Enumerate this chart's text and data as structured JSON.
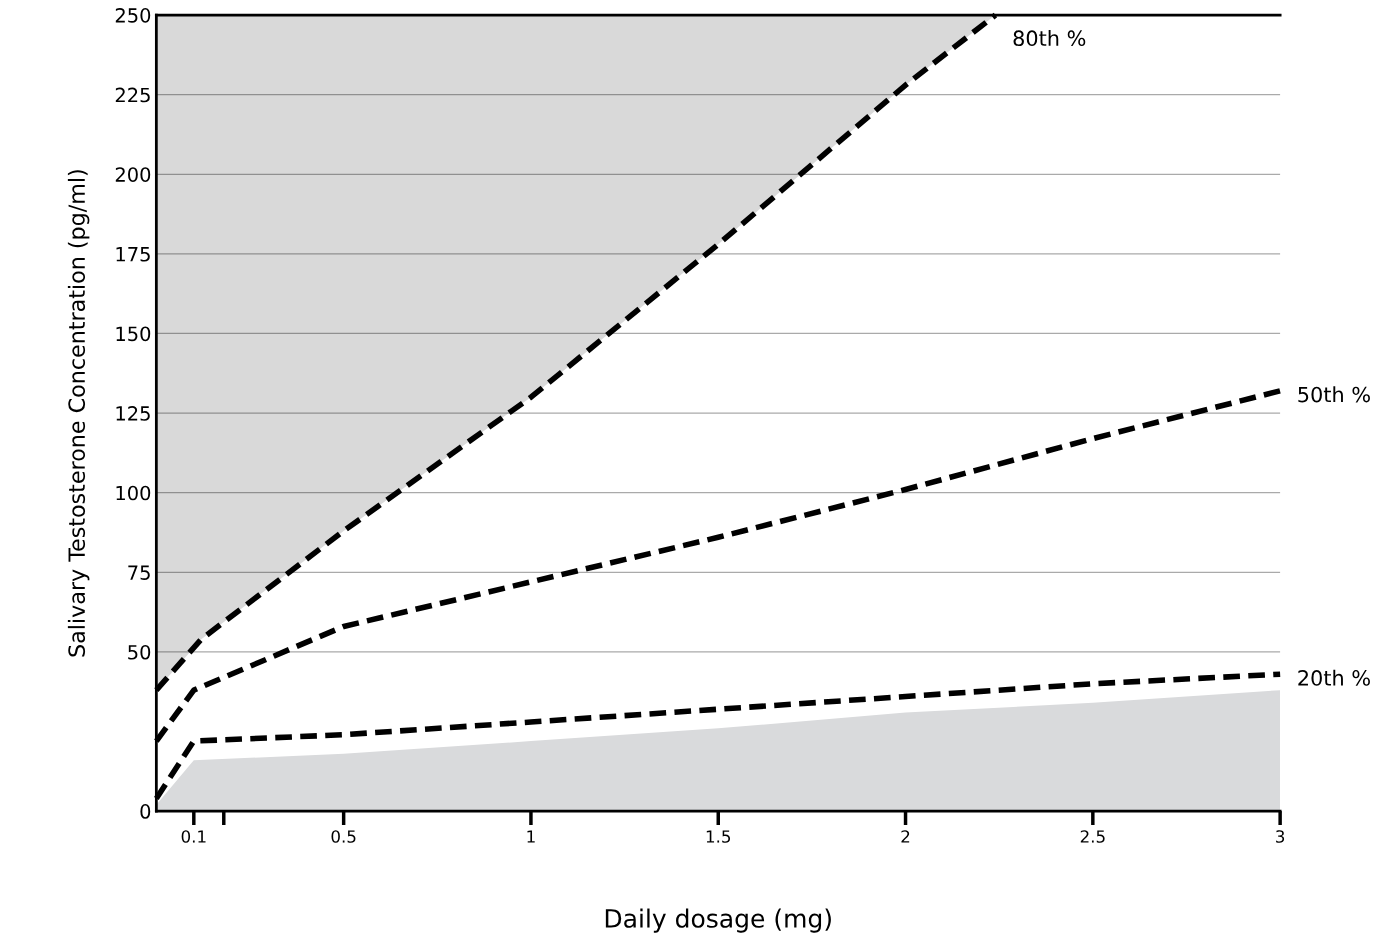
{
  "chart_data": {
    "type": "line",
    "xlabel": "Daily dosage (mg)",
    "ylabel": "Salivary Testosterone Concentration (pg/ml)",
    "xlim": [
      0,
      3
    ],
    "xticks": [
      0.1,
      {
        "value": 0.18,
        "label": null
      },
      0.5,
      1,
      1.5,
      2,
      2.5,
      3
    ],
    "ylim": [
      0,
      250
    ],
    "yticks": [
      0,
      50,
      75,
      100,
      125,
      150,
      175,
      200,
      225,
      250
    ],
    "grid": "y",
    "line_style": "dashed",
    "marker": "none",
    "series": [
      {
        "type": "area",
        "color": "#d9dadc",
        "x": [
          0,
          0.1,
          0.5,
          1,
          1.5,
          2,
          2.5,
          3
        ],
        "values": [
          2,
          16,
          18,
          22,
          26,
          31,
          34,
          38
        ]
      },
      {
        "name": "80th %",
        "color": "#000000",
        "x": [
          0,
          0.12,
          0.5,
          1,
          1.5,
          2,
          2.24
        ],
        "values": [
          38,
          54,
          88,
          130,
          178,
          228,
          250
        ],
        "lower": [
          38,
          54,
          88,
          130,
          178,
          228,
          250
        ],
        "upper": [
          250,
          250,
          250,
          250,
          250,
          250,
          250
        ]
      },
      {
        "name": "50th %",
        "color": "#000000",
        "x": [
          0,
          0.1,
          0.5,
          1,
          1.5,
          2,
          2.5,
          3
        ],
        "values": [
          22,
          38,
          58,
          72,
          86,
          101,
          117,
          132
        ]
      },
      {
        "name": "20th %",
        "color": "#000000",
        "x": [
          0,
          0.1,
          0.5,
          1,
          1.5,
          2,
          2.5,
          3
        ],
        "values": [
          4,
          22,
          24,
          28,
          32,
          36,
          40,
          43
        ]
      }
    ]
  }
}
